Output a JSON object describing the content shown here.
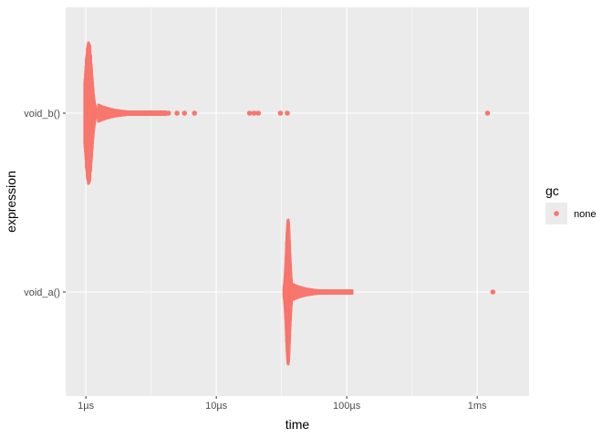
{
  "chart_data": {
    "type": "scatter",
    "title": "",
    "xlabel": "time",
    "ylabel": "expression",
    "x_scale": "log10",
    "x_unit": "seconds",
    "xlim": [
      7e-07,
      0.0025
    ],
    "x_ticks": [
      {
        "value": 1e-06,
        "label": "1µs"
      },
      {
        "value": 1e-05,
        "label": "10µs"
      },
      {
        "value": 0.0001,
        "label": "100µs"
      },
      {
        "value": 0.001,
        "label": "1ms"
      }
    ],
    "categories": [
      "void_b()",
      "void_a()"
    ],
    "grid": true,
    "legend": {
      "title": "gc",
      "position": "right",
      "entries": [
        {
          "label": "none",
          "color": "#F8766D"
        }
      ]
    },
    "series": [
      {
        "name": "none",
        "color": "#F8766D",
        "groups": [
          {
            "category": "void_b()",
            "dense_cluster": {
              "x_min": 9.8e-07,
              "x_peak": 1.05e-06,
              "x_max": 1.25e-06
            },
            "tail": {
              "x_from": 1.25e-06,
              "x_to": 4.1e-06
            },
            "outliers": [
              4.3e-06,
              5e-06,
              5.7e-06,
              6.8e-06,
              1.8e-05,
              1.95e-05,
              2.1e-05,
              3.1e-05,
              3.5e-05,
              0.0012
            ]
          },
          {
            "category": "void_a()",
            "dense_cluster": {
              "x_min": 3.3e-05,
              "x_peak": 3.55e-05,
              "x_max": 3.8e-05
            },
            "tail": {
              "x_from": 3.8e-05,
              "x_to": 0.00011
            },
            "outliers": [
              0.00132
            ]
          }
        ]
      }
    ]
  }
}
